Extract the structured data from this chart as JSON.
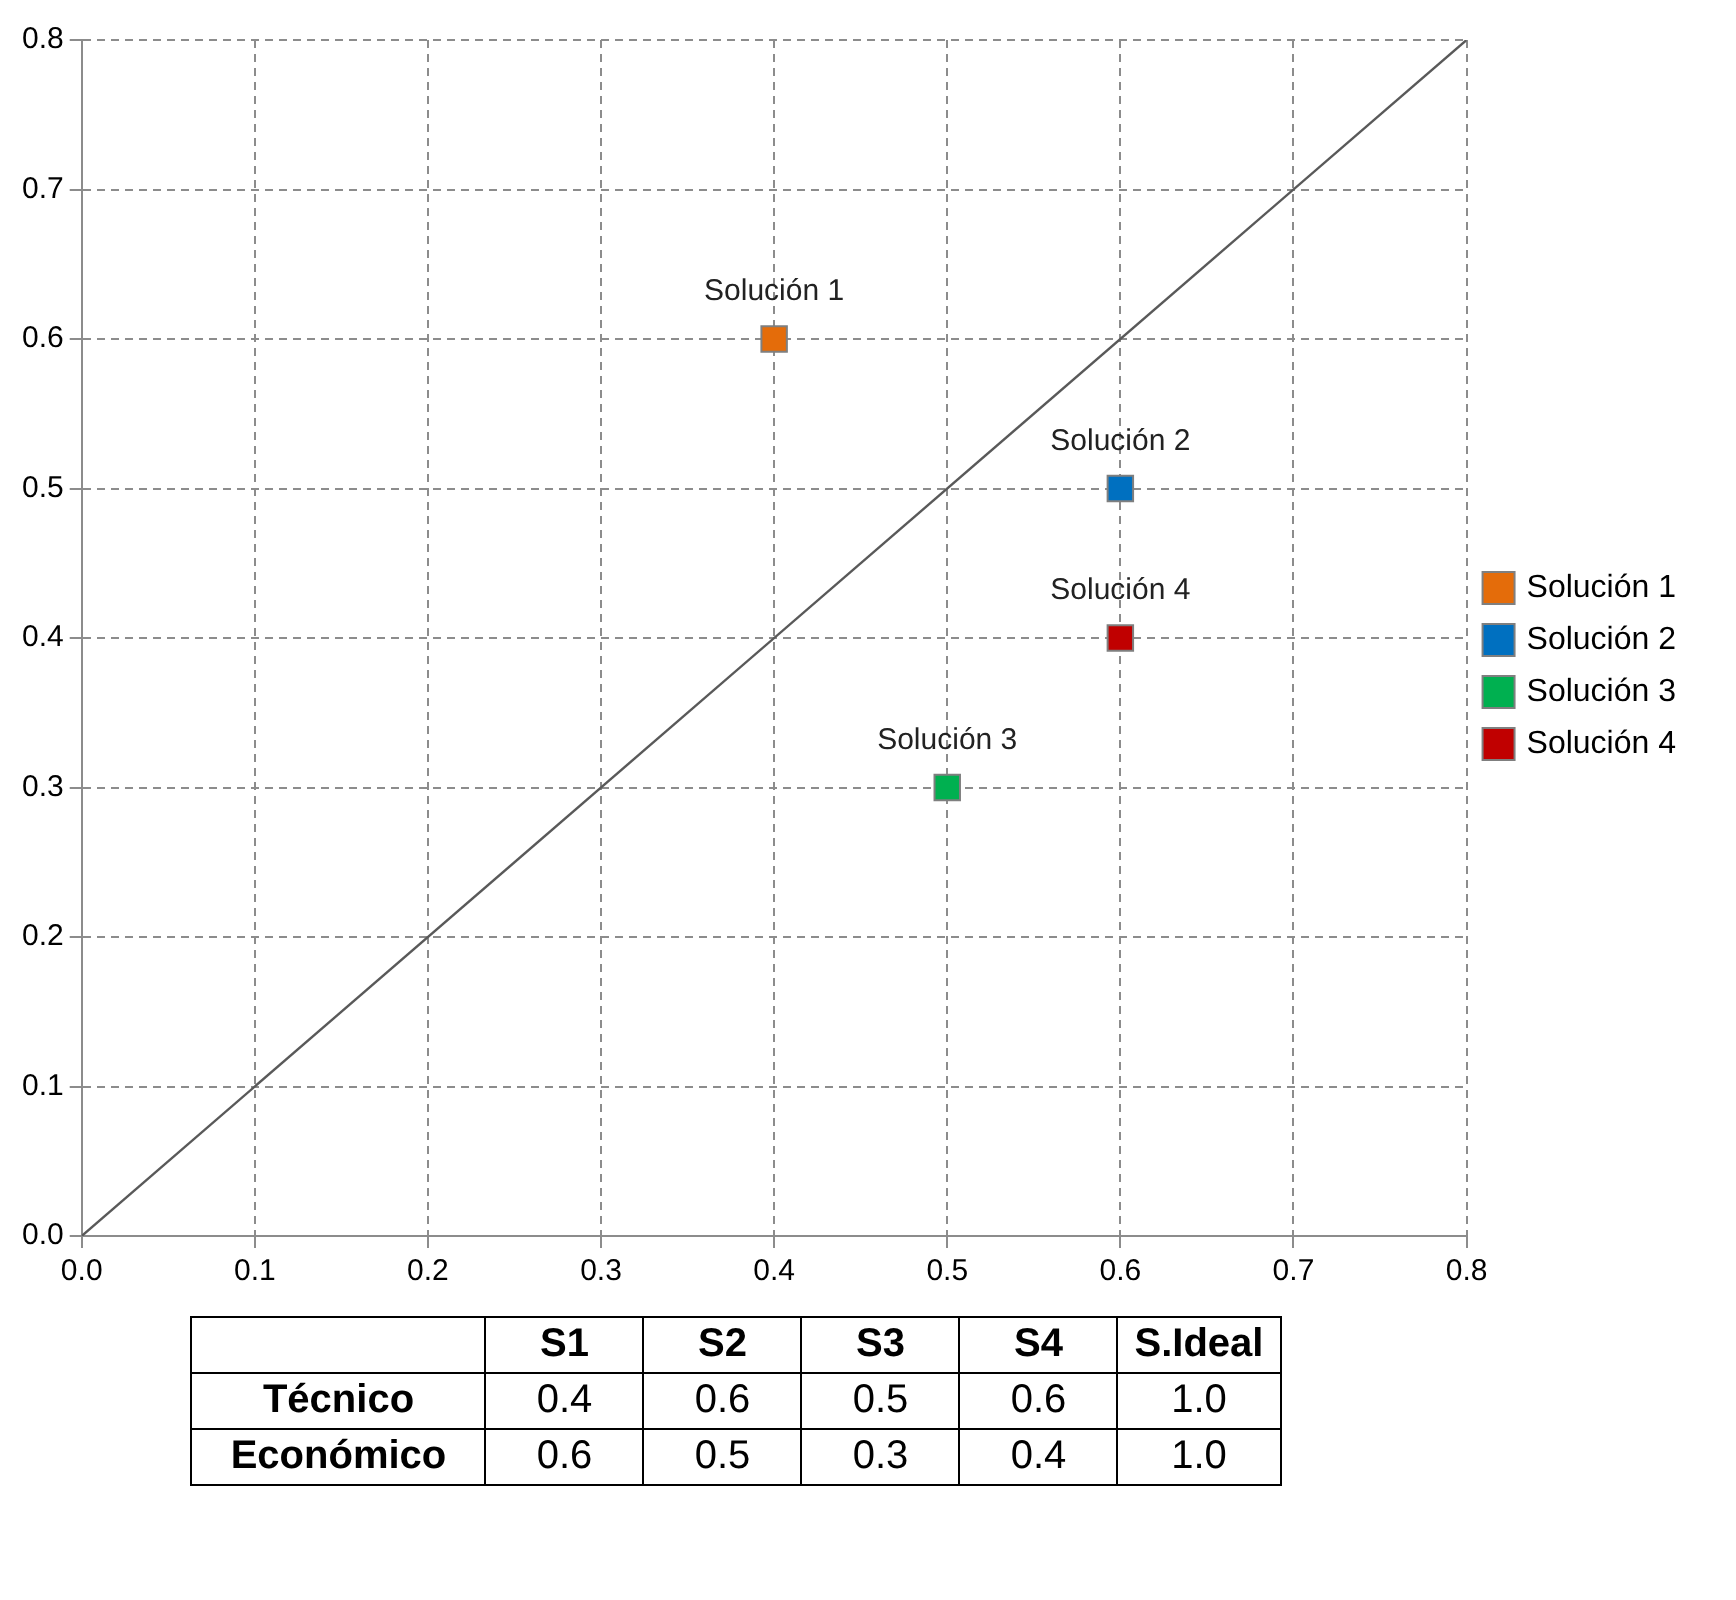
{
  "chart_data": [
    {
      "type": "scatter",
      "xlim": [
        0,
        0.8
      ],
      "ylim": [
        0,
        0.8
      ],
      "xticks": [
        {
          "value": 0,
          "label": "0.0"
        },
        0.1,
        0.2,
        0.3,
        0.4,
        0.5,
        0.6,
        0.7,
        0.8
      ],
      "yticks": [
        {
          "value": 0,
          "label": "0.0"
        },
        0.1,
        0.2,
        0.3,
        0.4,
        0.5,
        0.6,
        0.7,
        0.8
      ],
      "grid": true,
      "legend": "right",
      "marker": "square",
      "series": [
        {
          "type": "line",
          "color": "#595959",
          "x": [
            0,
            0.8
          ],
          "values": [
            0,
            0.8
          ],
          "marker": "none"
        },
        {
          "name": "Solución 1",
          "color": "#e46c0a",
          "x": [
            0.4
          ],
          "values": [
            0.6
          ]
        },
        {
          "name": "Solución 2",
          "color": "#0070c0",
          "x": [
            0.6
          ],
          "values": [
            0.5
          ]
        },
        {
          "name": "Solución 3",
          "color": "#00b050",
          "x": [
            0.5
          ],
          "values": [
            0.3
          ]
        },
        {
          "name": "Solución 4",
          "color": "#c00000",
          "x": [
            0.6
          ],
          "values": [
            0.4
          ]
        }
      ]
    },
    {
      "type": "other",
      "categories": [
        "S1",
        "S2",
        "S3",
        "S4",
        "S.Ideal"
      ],
      "data_labels": true,
      "series": [
        {
          "name": "Técnico",
          "values": [
            0.4,
            0.6,
            0.5,
            0.6,
            1.0
          ],
          "value_labels": [
            "0.4",
            "0.6",
            "0.5",
            "0.6",
            "1.0"
          ]
        },
        {
          "name": "Económico",
          "values": [
            0.6,
            0.5,
            0.3,
            0.4,
            1.0
          ],
          "value_labels": [
            "0.6",
            "0.5",
            "0.3",
            "0.4",
            "1.0"
          ]
        }
      ]
    }
  ]
}
